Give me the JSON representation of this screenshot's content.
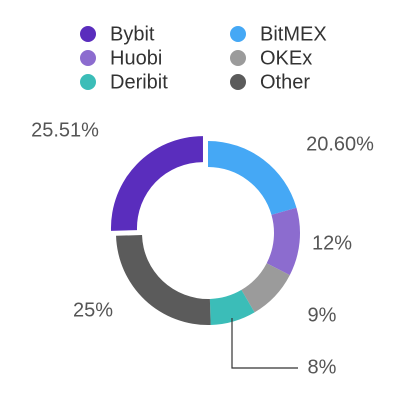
{
  "chart_data": {
    "type": "donut",
    "categories": [
      "Bybit",
      "BitMEX",
      "Huobi",
      "OKEx",
      "Deribit",
      "Other"
    ],
    "values": [
      25.51,
      20.6,
      12,
      9,
      8,
      25
    ],
    "value_labels": [
      "25.51%",
      "20.60%",
      "12%",
      "9%",
      "8%",
      "25%"
    ],
    "colors": [
      "#5a2dbd",
      "#45a8f5",
      "#8c6ccf",
      "#9b9b9b",
      "#3bbdb8",
      "#5b5b5b"
    ]
  }
}
